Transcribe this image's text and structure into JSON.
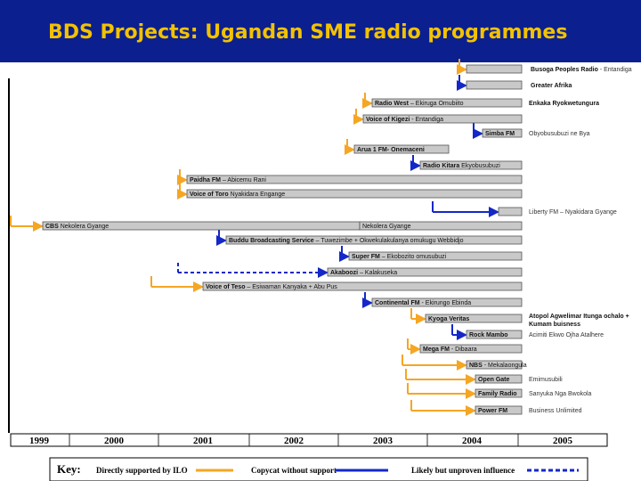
{
  "title": "BDS Projects: Ugandan SME radio programmes",
  "colors": {
    "title_bg": "#0b1f8f",
    "title_text": "#f2c200",
    "orange": "#f5a623",
    "blue": "#1428c8",
    "bar": "#c9c9c9"
  },
  "years": [
    "1999",
    "2000",
    "2001",
    "2002",
    "2003",
    "2004",
    "2005"
  ],
  "key": {
    "title": "Key:",
    "direct": "Directly supported by ILO",
    "copycat": "Copycat without support",
    "likely": "Likely but unproven influence"
  },
  "bars": [
    {
      "label": "",
      "side_bold": "Busoga Peoples Radio",
      "side": " - Entandiga"
    },
    {
      "label": "",
      "side_bold": "Greater Afrika",
      "side": ""
    },
    {
      "label": "Radio West",
      "label_rest": " – Ekiruga Omubiito",
      "side_bold": "Enkaka Ryokwetungura",
      "side": ""
    },
    {
      "label": "Voice of Kigezi",
      "label_rest": " - Entandiga",
      "side": ""
    },
    {
      "label": "Simba FM",
      "label_rest": "",
      "side": "Obyobusubuzi ne Bya"
    },
    {
      "label": "Arua 1 FM- Onemaceni",
      "label_rest": "",
      "side": ""
    },
    {
      "label": "Radio Kitara",
      "label_rest": " Ekyobusubuzi",
      "side": ""
    },
    {
      "label": "Paidha FM",
      "label_rest": " – Abicemu Rani",
      "side": ""
    },
    {
      "label": "Voice of Toro",
      "label_rest": " Nyakidara Engange",
      "side": ""
    },
    {
      "label": "",
      "side": "Liberty FM – Nyakidara Gyange"
    },
    {
      "label": "CBS",
      "label_rest": " Nekolera Gyange",
      "label2": "Nekolera Gyange",
      "side": ""
    },
    {
      "label": "Buddu Broadcasting Service",
      "label_rest": " – Tuwezimbe + Okwekulakulanya omukugu Webbidjo",
      "side": ""
    },
    {
      "label": "Super FM",
      "label_rest": " – Ekobozito omusubuzi",
      "side": ""
    },
    {
      "label": "Akaboozi",
      "label_rest": " – Kalakuseka",
      "side": ""
    },
    {
      "label": "Voice of Teso",
      "label_rest": " – Esiwaman Kanyaka + Abu Pus",
      "side": ""
    },
    {
      "label": "Continental FM",
      "label_rest": " - Ekirungo Ebinda",
      "side": ""
    },
    {
      "label": "Kyoga Veritas",
      "label_rest": "",
      "side_bold": "Atopol Agwelimar Itunga ochalo + Kumam buisness",
      "side": ""
    },
    {
      "label": "Rock Mambo",
      "label_rest": "",
      "side": "Acimiti Ekwo Ojha Atalhere"
    },
    {
      "label": "Mega FM",
      "label_rest": " - Dibaara",
      "side": ""
    },
    {
      "label": "NBS",
      "label_rest": " - Mekalaongula",
      "side": ""
    },
    {
      "label": "Open Gate",
      "label_rest": "",
      "side": "Emimusubili"
    },
    {
      "label": "Family Radio",
      "label_rest": "",
      "side": "Sanyuka Nga Bwokola"
    },
    {
      "label": "Power FM",
      "label_rest": "",
      "side": "Business Unlimited"
    }
  ]
}
